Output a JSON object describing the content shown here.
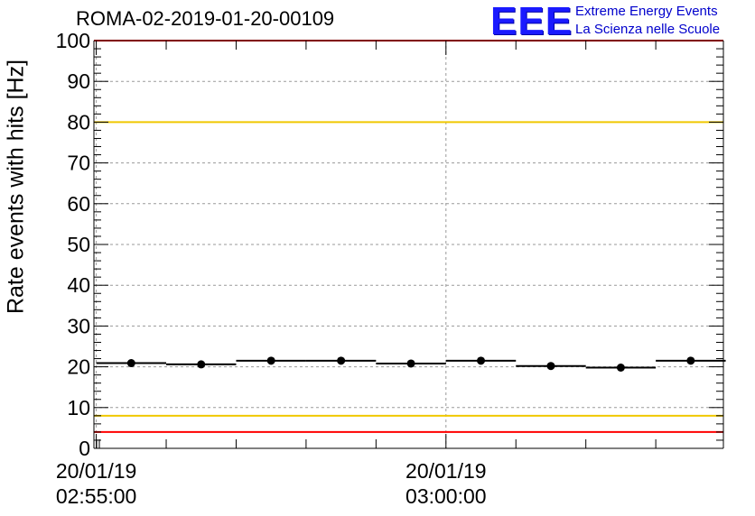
{
  "chart_data": {
    "type": "scatter",
    "title": "ROMA-02-2019-01-20-00109",
    "ylabel": "Rate events with hits [Hz]",
    "xlabel": "",
    "ylim": [
      0,
      100
    ],
    "yticks": [
      0,
      10,
      20,
      30,
      40,
      50,
      60,
      70,
      80,
      90,
      100
    ],
    "xticks": [
      {
        "x": 0,
        "date": "20/01/19",
        "time": "02:55:00"
      },
      {
        "x": 300,
        "date": "20/01/19",
        "time": "03:00:00"
      }
    ],
    "xlim": [
      -2,
      538
    ],
    "x_unit": "seconds after 20/01/19 02:55:00",
    "grid": true,
    "thresholds": [
      {
        "value": 100,
        "color": "#ff0000"
      },
      {
        "value": 80,
        "color": "#f0c800"
      },
      {
        "value": 8,
        "color": "#f0c800"
      },
      {
        "value": 4,
        "color": "#ff0000"
      }
    ],
    "series": [
      {
        "marker_color": "#000000",
        "points": [
          {
            "x": 30,
            "xerr": 30,
            "y": 20.9
          },
          {
            "x": 90,
            "xerr": 30,
            "y": 20.6
          },
          {
            "x": 150,
            "xerr": 30,
            "y": 21.5
          },
          {
            "x": 210,
            "xerr": 30,
            "y": 21.5
          },
          {
            "x": 270,
            "xerr": 30,
            "y": 20.8
          },
          {
            "x": 330,
            "xerr": 30,
            "y": 21.5
          },
          {
            "x": 390,
            "xerr": 30,
            "y": 20.2
          },
          {
            "x": 450,
            "xerr": 30,
            "y": 19.8
          },
          {
            "x": 510,
            "xerr": 30,
            "y": 21.5
          }
        ]
      }
    ]
  },
  "logo": {
    "letters": "EEE",
    "line1": "Extreme Energy Events",
    "line2": "La Scienza nelle Scuole",
    "color": "#0000cc"
  }
}
